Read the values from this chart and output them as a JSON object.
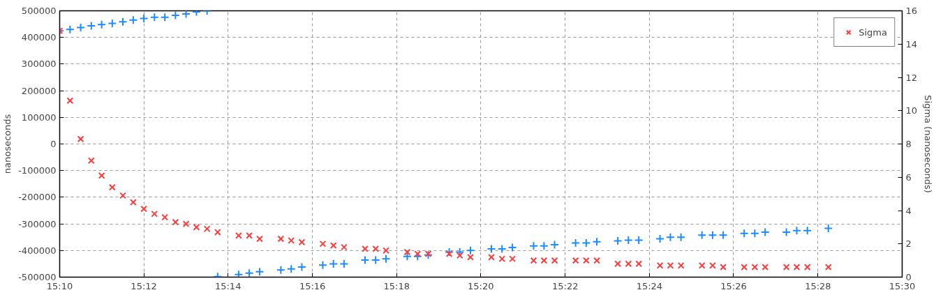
{
  "chart_data": {
    "type": "scatter",
    "ylabel": "nanoseconds",
    "y2label": "Sigma (nanoseconds)",
    "xlim": [
      15.1667,
      15.5
    ],
    "xticks": [
      {
        "value": 15.1667,
        "label": "15:10"
      },
      {
        "value": 15.2,
        "label": "15:12"
      },
      {
        "value": 15.2333,
        "label": "15:14"
      },
      {
        "value": 15.2667,
        "label": "15:16"
      },
      {
        "value": 15.3,
        "label": "15:18"
      },
      {
        "value": 15.3333,
        "label": "15:20"
      },
      {
        "value": 15.3667,
        "label": "15:22"
      },
      {
        "value": 15.4,
        "label": "15:24"
      },
      {
        "value": 15.4333,
        "label": "15:26"
      },
      {
        "value": 15.4667,
        "label": "15:28"
      },
      {
        "value": 15.5,
        "label": "15:30"
      }
    ],
    "ylim": [
      -500000,
      500000
    ],
    "yticks": [
      -500000,
      -400000,
      -300000,
      -200000,
      -100000,
      0,
      100000,
      200000,
      300000,
      400000,
      500000
    ],
    "y2lim": [
      0,
      16
    ],
    "y2ticks": [
      0,
      2,
      4,
      6,
      8,
      10,
      12,
      14,
      16
    ],
    "grid": true,
    "legend": "top right",
    "series": [
      {
        "color": "#1a8cff",
        "marker": "cross",
        "x": [
          15.1667,
          15.1708,
          15.175,
          15.1792,
          15.1833,
          15.1875,
          15.1917,
          15.1958,
          15.2,
          15.2042,
          15.2083,
          15.2125,
          15.2167,
          15.2208,
          15.225,
          15.2292,
          15.2375,
          15.2417,
          15.2458,
          15.2542,
          15.2583,
          15.2625,
          15.2708,
          15.275,
          15.2792,
          15.2875,
          15.2917,
          15.2958,
          15.3042,
          15.3083,
          15.3125,
          15.3208,
          15.325,
          15.3292,
          15.3375,
          15.3417,
          15.3458,
          15.3542,
          15.3583,
          15.3625,
          15.3708,
          15.375,
          15.3792,
          15.3875,
          15.3917,
          15.3958,
          15.4042,
          15.4083,
          15.4125,
          15.4208,
          15.425,
          15.4292,
          15.4375,
          15.4417,
          15.4458,
          15.4542,
          15.4583,
          15.4625,
          15.4708
        ],
        "values": [
          425000,
          430000,
          437000,
          444000,
          448000,
          453000,
          459000,
          465000,
          471000,
          476000,
          476000,
          483000,
          488000,
          496000,
          500000,
          -498000,
          -490000,
          -485000,
          -480000,
          -473000,
          -469000,
          -462000,
          -455000,
          -450000,
          -450000,
          -436000,
          -436000,
          -431000,
          -422000,
          -422000,
          -417000,
          -406000,
          -406000,
          -400000,
          -394000,
          -394000,
          -389000,
          -383000,
          -383000,
          -378000,
          -372000,
          -372000,
          -367000,
          -364000,
          -361000,
          -361000,
          -356000,
          -350000,
          -350000,
          -342000,
          -342000,
          -342000,
          -336000,
          -336000,
          -331000,
          -331000,
          -325000,
          -325000,
          -317000
        ]
      },
      {
        "name": "Sigma",
        "color": "#ff3b3b",
        "marker": "x",
        "axis": "y2",
        "x": [
          15.1667,
          15.1708,
          15.175,
          15.1792,
          15.1833,
          15.1875,
          15.1917,
          15.1958,
          15.2,
          15.2042,
          15.2083,
          15.2125,
          15.2167,
          15.2208,
          15.225,
          15.2292,
          15.2375,
          15.2417,
          15.2458,
          15.2542,
          15.2583,
          15.2625,
          15.2708,
          15.275,
          15.2792,
          15.2875,
          15.2917,
          15.2958,
          15.3042,
          15.3083,
          15.3125,
          15.3208,
          15.325,
          15.3292,
          15.3375,
          15.3417,
          15.3458,
          15.3542,
          15.3583,
          15.3625,
          15.3708,
          15.375,
          15.3792,
          15.3875,
          15.3917,
          15.3958,
          15.4042,
          15.4083,
          15.4125,
          15.4208,
          15.425,
          15.4292,
          15.4375,
          15.4417,
          15.4458,
          15.4542,
          15.4583,
          15.4625,
          15.4708
        ],
        "values": [
          14.8,
          10.6,
          8.3,
          7.0,
          6.1,
          5.4,
          4.9,
          4.5,
          4.1,
          3.8,
          3.6,
          3.3,
          3.2,
          3.0,
          2.9,
          2.7,
          2.5,
          2.5,
          2.3,
          2.3,
          2.2,
          2.1,
          2.0,
          1.9,
          1.8,
          1.7,
          1.7,
          1.6,
          1.5,
          1.4,
          1.4,
          1.4,
          1.3,
          1.2,
          1.2,
          1.1,
          1.1,
          1.0,
          1.0,
          1.0,
          1.0,
          1.0,
          1.0,
          0.8,
          0.8,
          0.8,
          0.7,
          0.7,
          0.7,
          0.7,
          0.7,
          0.6,
          0.6,
          0.6,
          0.6,
          0.6,
          0.6,
          0.6,
          0.6
        ]
      }
    ]
  }
}
